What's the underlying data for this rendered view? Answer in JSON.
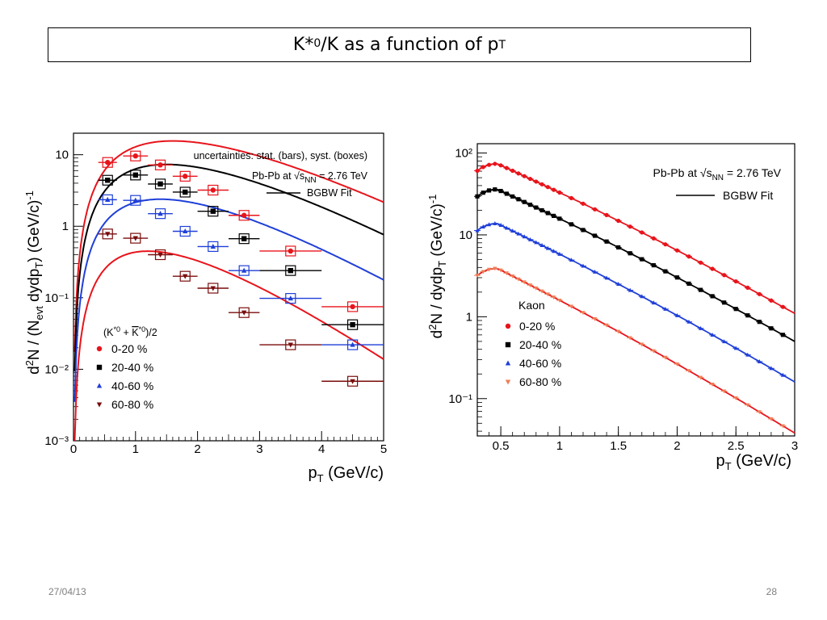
{
  "slide": {
    "title_main": "K*",
    "title_sup": "0",
    "title_mid": " /K as a function of p",
    "title_sub": "T",
    "date": "27/04/13",
    "page_number": "28"
  },
  "colors": {
    "red": "#e8141b",
    "black": "#000000",
    "blue": "#1f3fd8",
    "darkred": "#7a0c0c",
    "kaon_red_fit": "#e8141b",
    "kaon_orange": "#ef7d57"
  },
  "chart_data": [
    {
      "type": "scatter",
      "name": "kstar",
      "log_y": true,
      "xlim": [
        0,
        5
      ],
      "ylim": [
        0.001,
        20
      ],
      "x_ticks": [
        0,
        1,
        2,
        3,
        4,
        5
      ],
      "y_ticks": [
        {
          "v": 10,
          "label": "10"
        },
        {
          "v": 1,
          "label": "1"
        },
        {
          "v": 0.1,
          "label": "10⁻¹"
        },
        {
          "v": 0.01,
          "label": "10⁻²"
        },
        {
          "v": 0.001,
          "label": "10⁻³"
        }
      ],
      "xlabel": "p",
      "xlabel_sub": "T",
      "xlabel_rest": " (GeV/c)",
      "ylabel": "d²N / (N_evt dydp_T) (GeV/c)⁻¹",
      "ylabel_pre": "d",
      "ylabel_sup2": "2",
      "ylabel_mid": "N / (N",
      "ylabel_sub_evt": "evt",
      "ylabel_mid2": " dydp",
      "ylabel_sub_t": "T",
      "ylabel_end": ") (GeV/c)",
      "ylabel_sup_end": "-1",
      "annotations": {
        "uncertainties": "uncertainties: stat. (bars), syst. (boxes)",
        "collision": "Pb-Pb at √s",
        "collision_sub": "NN",
        "collision_end": " = 2.76 TeV",
        "fit_label": "BGBW Fit"
      },
      "legend_header": "(K*⁰ + K̄*⁰)/2",
      "legend_header_pre": "(K",
      "legend_header_sup1": "*0",
      "legend_header_mid": " + ",
      "legend_header_kbar": "K",
      "legend_header_sup2": "*0",
      "legend_header_end": ")/2",
      "bins": [
        {
          "x": 0.55,
          "w": 0.15
        },
        {
          "x": 1.0,
          "w": 0.2
        },
        {
          "x": 1.4,
          "w": 0.2
        },
        {
          "x": 1.8,
          "w": 0.2
        },
        {
          "x": 2.25,
          "w": 0.25
        },
        {
          "x": 2.75,
          "w": 0.25
        },
        {
          "x": 3.5,
          "w": 0.5
        },
        {
          "x": 4.5,
          "w": 0.5
        }
      ],
      "series": [
        {
          "name": "0-20 %",
          "color": "red",
          "marker": "circle",
          "values": [
            7.8,
            9.6,
            7.2,
            5.0,
            3.2,
            1.42,
            0.45,
            0.075
          ],
          "fit": {
            "A": 45.0,
            "pk": 0.8
          }
        },
        {
          "name": "20-40 %",
          "color": "black",
          "marker": "square",
          "values": [
            4.4,
            5.2,
            3.9,
            3.0,
            1.62,
            0.67,
            0.24,
            0.042
          ],
          "fit": {
            "A": 24.0,
            "pk": 0.75
          }
        },
        {
          "name": "40-60 %",
          "color": "blue",
          "marker": "triangle-up",
          "values": [
            2.35,
            2.3,
            1.5,
            0.85,
            0.52,
            0.24,
            0.098,
            0.022
          ],
          "fit": {
            "A": 9.0,
            "pk": 0.7
          }
        },
        {
          "name": "60-80 %",
          "color": "darkred",
          "marker": "triangle-down",
          "values": [
            0.78,
            0.68,
            0.4,
            0.2,
            0.136,
            0.062,
            0.022,
            0.0068
          ],
          "fit": {
            "A": 2.3,
            "pk": 0.6
          }
        }
      ]
    },
    {
      "type": "scatter",
      "name": "kaon",
      "log_y": true,
      "xlim": [
        0.3,
        3.0
      ],
      "ylim": [
        0.035,
        130
      ],
      "x_ticks": [
        0.5,
        1,
        1.5,
        2,
        2.5,
        3
      ],
      "x_tick_labels": [
        "0.5",
        "1",
        "1.5",
        "2",
        "2.5",
        "3"
      ],
      "y_ticks": [
        {
          "v": 100,
          "label": "10²"
        },
        {
          "v": 10,
          "label": "10"
        },
        {
          "v": 1,
          "label": "1"
        },
        {
          "v": 0.1,
          "label": "10⁻¹"
        }
      ],
      "xlabel": "p",
      "xlabel_sub": "T",
      "xlabel_rest": " (GeV/c)",
      "ylabel_pre": "d",
      "ylabel_sup2": "2",
      "ylabel_mid": "N / dydp",
      "ylabel_sub_t": "T",
      "ylabel_end": " (GeV/c)",
      "ylabel_sup_end": "-1",
      "annotations": {
        "collision": "Pb-Pb at √s",
        "collision_sub": "NN",
        "collision_end": " = 2.76 TeV",
        "fit_label": "BGBW Fit",
        "species": "Kaon"
      },
      "series": [
        {
          "name": "0-20 %",
          "color": "red",
          "marker": "circle",
          "peak": 74,
          "end": 1.1
        },
        {
          "name": "20-40 %",
          "color": "black",
          "marker": "square",
          "peak": 36,
          "end": 0.5
        },
        {
          "name": "40-60 %",
          "color": "blue",
          "marker": "triangle-up",
          "peak": 13.8,
          "end": 0.16
        },
        {
          "name": "60-80 %",
          "color": "kaon_orange",
          "marker": "triangle-down",
          "peak": 3.9,
          "end": 0.038,
          "fit_color": "kaon_red_fit"
        }
      ]
    }
  ]
}
